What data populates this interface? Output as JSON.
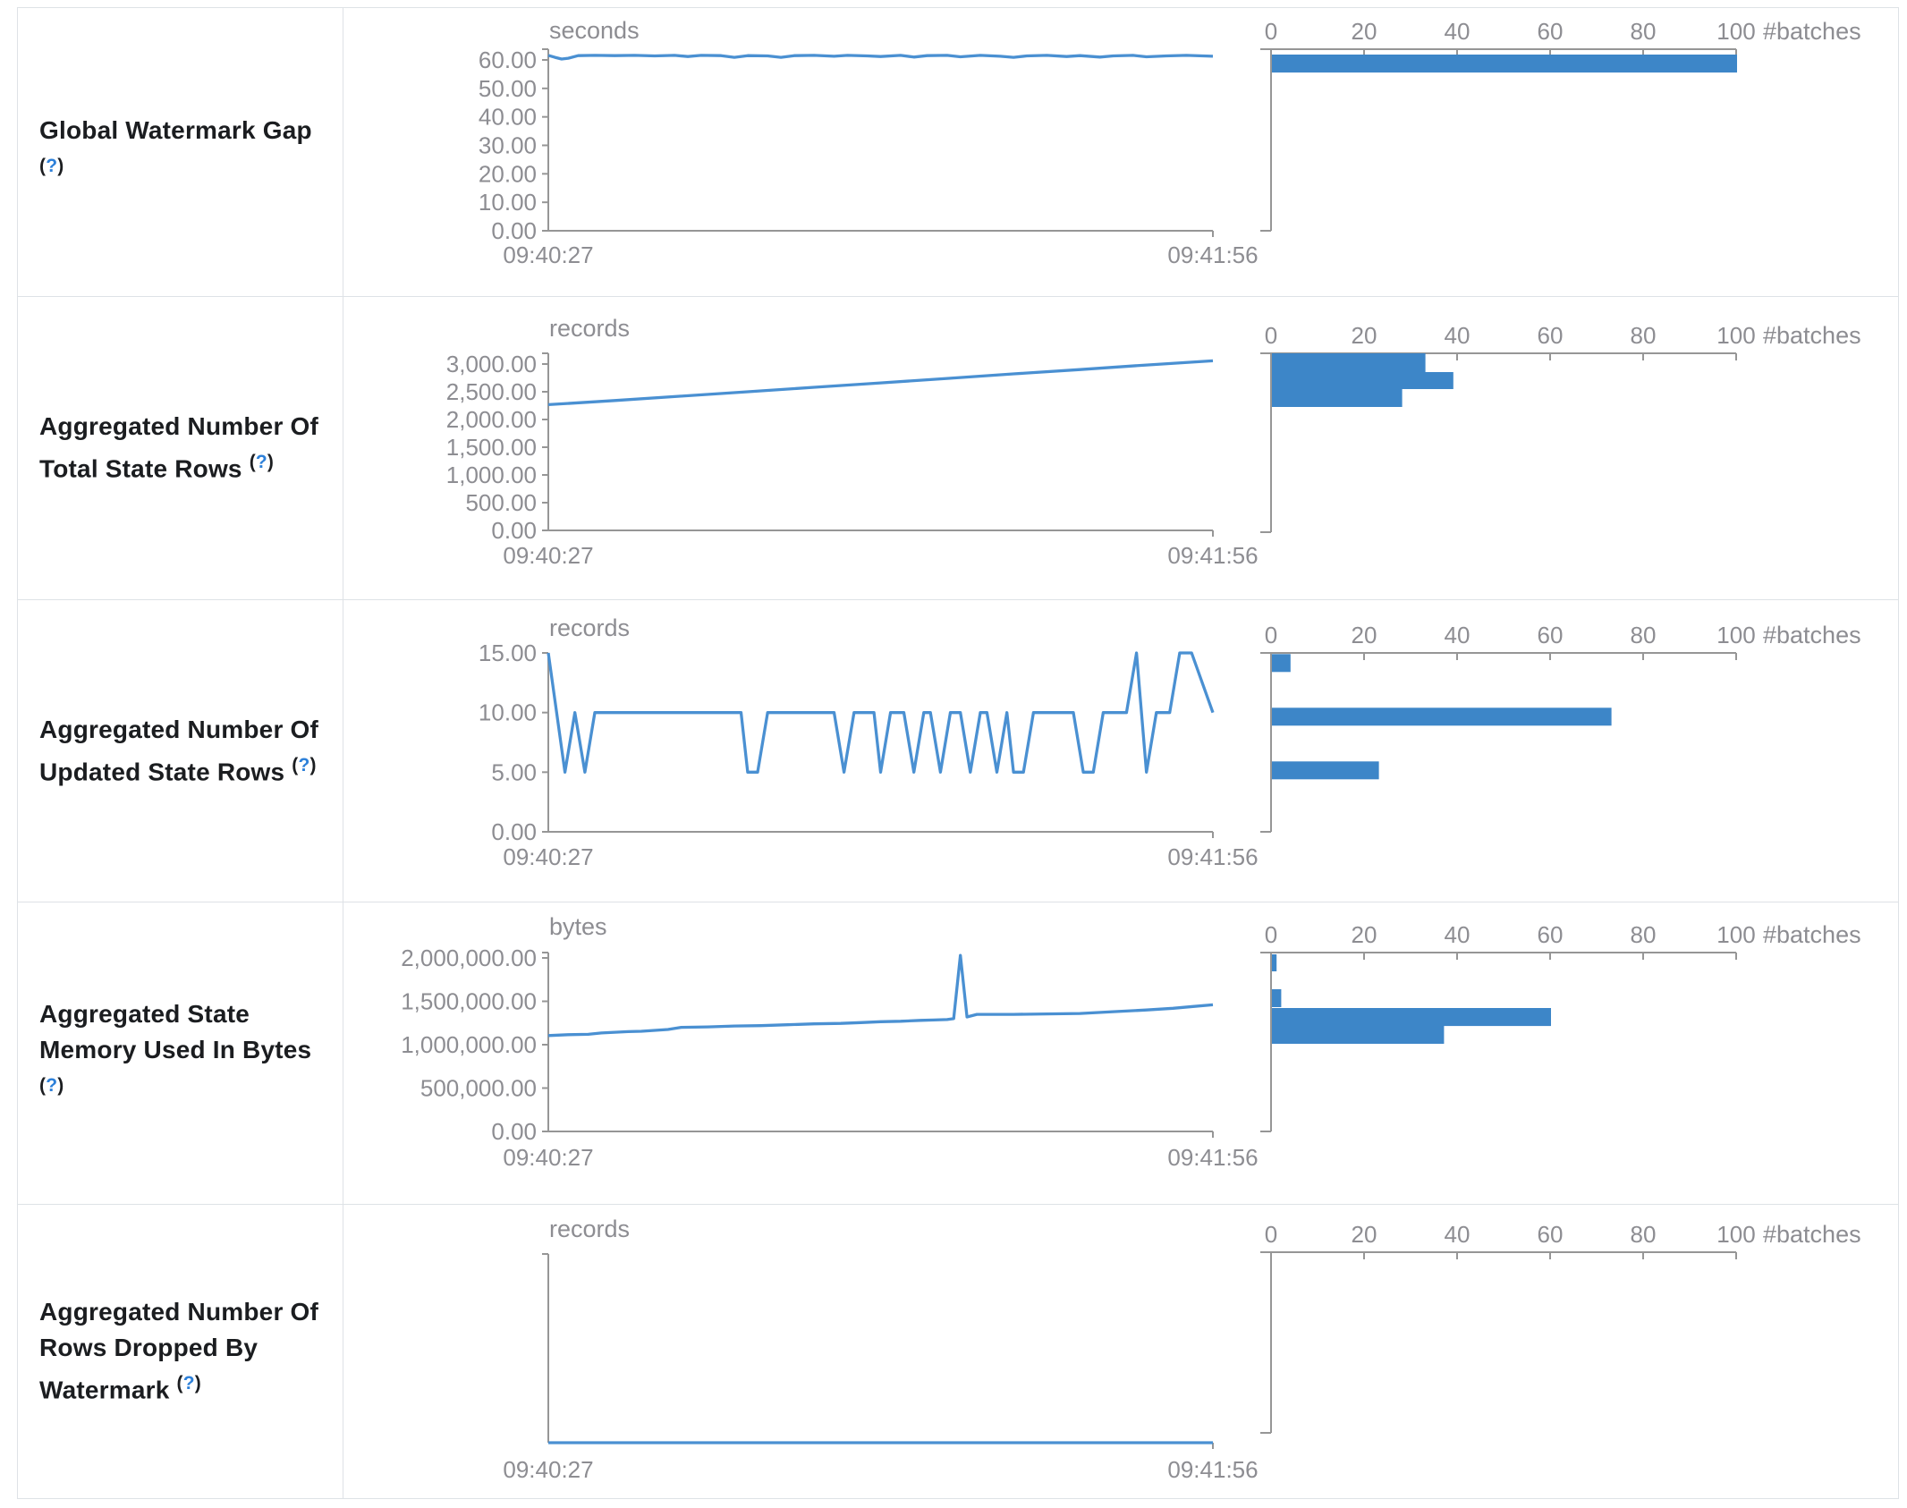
{
  "page": {
    "colors": {
      "line_blue": "#4a90d2",
      "bar_blue": "#3d86c8",
      "axis_gray": "#969696",
      "text_gray": "#8d8d92",
      "label_color": "#1b1d20",
      "help_blue": "#2d80d9",
      "border": "#dee2e6"
    }
  },
  "x_axis": {
    "start_label": "09:40:27",
    "end_label": "09:41:56"
  },
  "histogram_axis": {
    "unit": "#batches",
    "ticks": [
      0,
      20,
      40,
      60,
      80,
      100
    ],
    "xlim": [
      0,
      100
    ]
  },
  "rows": [
    {
      "label": "Global Watermark Gap",
      "help": "?"
    },
    {
      "label": "Aggregated Number Of Total State Rows",
      "help": "?"
    },
    {
      "label": "Aggregated Number Of Updated State Rows",
      "help": "?"
    },
    {
      "label": "Aggregated State Memory Used In Bytes",
      "help": "?"
    },
    {
      "label": "Aggregated Number Of Rows Dropped By Watermark",
      "help": "?"
    }
  ],
  "chart_data": [
    {
      "row": "Global Watermark Gap",
      "timeline": {
        "type": "line",
        "unit": "seconds",
        "x_range": [
          "09:40:27",
          "09:41:56"
        ],
        "ylim": [
          0,
          63.8
        ],
        "grid": false,
        "yticks": [
          {
            "v": 60,
            "t": "60.00"
          },
          {
            "v": 50,
            "t": "50.00"
          },
          {
            "v": 40,
            "t": "40.00"
          },
          {
            "v": 30,
            "t": "30.00"
          },
          {
            "v": 20,
            "t": "20.00"
          },
          {
            "v": 10,
            "t": "10.00"
          },
          {
            "v": 0,
            "t": "0.00"
          }
        ],
        "points": [
          [
            0,
            61.6
          ],
          [
            0.01,
            60.9
          ],
          [
            0.02,
            60.3
          ],
          [
            0.03,
            60.6
          ],
          [
            0.045,
            61.5
          ],
          [
            0.07,
            61.6
          ],
          [
            0.1,
            61.5
          ],
          [
            0.13,
            61.6
          ],
          [
            0.16,
            61.4
          ],
          [
            0.19,
            61.6
          ],
          [
            0.21,
            61.2
          ],
          [
            0.23,
            61.6
          ],
          [
            0.26,
            61.5
          ],
          [
            0.28,
            60.9
          ],
          [
            0.3,
            61.5
          ],
          [
            0.33,
            61.4
          ],
          [
            0.35,
            60.9
          ],
          [
            0.37,
            61.5
          ],
          [
            0.4,
            61.6
          ],
          [
            0.43,
            61.3
          ],
          [
            0.45,
            61.6
          ],
          [
            0.48,
            61.4
          ],
          [
            0.5,
            61.2
          ],
          [
            0.53,
            61.6
          ],
          [
            0.55,
            61.0
          ],
          [
            0.57,
            61.5
          ],
          [
            0.6,
            61.6
          ],
          [
            0.62,
            61.1
          ],
          [
            0.65,
            61.6
          ],
          [
            0.68,
            61.3
          ],
          [
            0.7,
            60.9
          ],
          [
            0.72,
            61.4
          ],
          [
            0.75,
            61.6
          ],
          [
            0.78,
            61.2
          ],
          [
            0.8,
            61.5
          ],
          [
            0.83,
            61.0
          ],
          [
            0.85,
            61.4
          ],
          [
            0.88,
            61.6
          ],
          [
            0.9,
            61.1
          ],
          [
            0.93,
            61.4
          ],
          [
            0.96,
            61.6
          ],
          [
            1,
            61.3
          ]
        ]
      },
      "histogram": {
        "type": "bar",
        "unit": "#batches",
        "xlim": [
          0,
          100
        ],
        "xticks": [
          0,
          20,
          40,
          60,
          80,
          100
        ],
        "buckets": [
          {
            "hi": 61.9,
            "lo": 55.6,
            "count": 100
          }
        ]
      }
    },
    {
      "row": "Aggregated Number Of Total State Rows",
      "timeline": {
        "type": "line",
        "unit": "records",
        "x_range": [
          "09:40:27",
          "09:41:56"
        ],
        "ylim": [
          0,
          3194
        ],
        "grid": false,
        "yticks": [
          {
            "v": 3000,
            "t": "3,000.00"
          },
          {
            "v": 2500,
            "t": "2,500.00"
          },
          {
            "v": 2000,
            "t": "2,000.00"
          },
          {
            "v": 1500,
            "t": "1,500.00"
          },
          {
            "v": 1000,
            "t": "1,000.00"
          },
          {
            "v": 500,
            "t": "500.00"
          },
          {
            "v": 0,
            "t": "0.00"
          }
        ],
        "points": [
          [
            0,
            2268
          ],
          [
            0.1,
            2342
          ],
          [
            0.2,
            2421
          ],
          [
            0.3,
            2500
          ],
          [
            0.4,
            2580
          ],
          [
            0.5,
            2660
          ],
          [
            0.6,
            2740
          ],
          [
            0.7,
            2822
          ],
          [
            0.8,
            2900
          ],
          [
            0.9,
            2982
          ],
          [
            1,
            3058
          ]
        ]
      },
      "histogram": {
        "type": "bar",
        "unit": "#batches",
        "xlim": [
          0,
          100
        ],
        "xticks": [
          0,
          20,
          40,
          60,
          80,
          100
        ],
        "buckets": [
          {
            "hi": 3194,
            "lo": 2855,
            "count": 33
          },
          {
            "hi": 2855,
            "lo": 2548,
            "count": 39
          },
          {
            "hi": 2548,
            "lo": 2226,
            "count": 28
          }
        ]
      }
    },
    {
      "row": "Aggregated Number Of Updated State Rows",
      "timeline": {
        "type": "line",
        "unit": "records",
        "x_range": [
          "09:40:27",
          "09:41:56"
        ],
        "ylim": [
          0,
          15
        ],
        "grid": false,
        "yticks": [
          {
            "v": 15,
            "t": "15.00"
          },
          {
            "v": 10,
            "t": "10.00"
          },
          {
            "v": 5,
            "t": "5.00"
          },
          {
            "v": 0,
            "t": "0.00"
          }
        ],
        "points": [
          [
            0,
            15
          ],
          [
            0.025,
            5
          ],
          [
            0.04,
            10
          ],
          [
            0.055,
            5
          ],
          [
            0.07,
            10
          ],
          [
            0.29,
            10
          ],
          [
            0.3,
            5
          ],
          [
            0.315,
            5
          ],
          [
            0.33,
            10
          ],
          [
            0.43,
            10
          ],
          [
            0.445,
            5
          ],
          [
            0.46,
            10
          ],
          [
            0.49,
            10
          ],
          [
            0.5,
            5
          ],
          [
            0.515,
            10
          ],
          [
            0.535,
            10
          ],
          [
            0.55,
            5
          ],
          [
            0.565,
            10
          ],
          [
            0.575,
            10
          ],
          [
            0.59,
            5
          ],
          [
            0.605,
            10
          ],
          [
            0.62,
            10
          ],
          [
            0.635,
            5
          ],
          [
            0.65,
            10
          ],
          [
            0.66,
            10
          ],
          [
            0.675,
            5
          ],
          [
            0.69,
            10
          ],
          [
            0.7,
            5
          ],
          [
            0.715,
            5
          ],
          [
            0.73,
            10
          ],
          [
            0.79,
            10
          ],
          [
            0.805,
            5
          ],
          [
            0.82,
            5
          ],
          [
            0.835,
            10
          ],
          [
            0.87,
            10
          ],
          [
            0.885,
            15
          ],
          [
            0.9,
            5
          ],
          [
            0.915,
            10
          ],
          [
            0.935,
            10
          ],
          [
            0.95,
            15
          ],
          [
            0.968,
            15
          ],
          [
            1,
            10
          ]
        ]
      },
      "histogram": {
        "type": "bar",
        "unit": "#batches",
        "xlim": [
          0,
          100
        ],
        "xticks": [
          0,
          20,
          40,
          60,
          80,
          100
        ],
        "buckets": [
          {
            "hi": 14.9,
            "lo": 13.4,
            "count": 4
          },
          {
            "hi": 10.4,
            "lo": 8.9,
            "count": 73
          },
          {
            "hi": 5.9,
            "lo": 4.4,
            "count": 23
          }
        ]
      }
    },
    {
      "row": "Aggregated State Memory Used In Bytes",
      "timeline": {
        "type": "line",
        "unit": "bytes",
        "x_range": [
          "09:40:27",
          "09:41:56"
        ],
        "ylim": [
          0,
          2062000
        ],
        "grid": false,
        "yticks": [
          {
            "v": 2000000,
            "t": "2,000,000.00"
          },
          {
            "v": 1500000,
            "t": "1,500,000.00"
          },
          {
            "v": 1000000,
            "t": "1,000,000.00"
          },
          {
            "v": 500000,
            "t": "500,000.00"
          },
          {
            "v": 0,
            "t": "0.00"
          }
        ],
        "points": [
          [
            0,
            1105000
          ],
          [
            0.03,
            1115000
          ],
          [
            0.06,
            1120000
          ],
          [
            0.08,
            1135000
          ],
          [
            0.12,
            1150000
          ],
          [
            0.14,
            1155000
          ],
          [
            0.18,
            1175000
          ],
          [
            0.2,
            1200000
          ],
          [
            0.24,
            1205000
          ],
          [
            0.28,
            1215000
          ],
          [
            0.32,
            1220000
          ],
          [
            0.36,
            1230000
          ],
          [
            0.4,
            1240000
          ],
          [
            0.44,
            1245000
          ],
          [
            0.47,
            1255000
          ],
          [
            0.5,
            1265000
          ],
          [
            0.53,
            1270000
          ],
          [
            0.56,
            1280000
          ],
          [
            0.58,
            1285000
          ],
          [
            0.6,
            1290000
          ],
          [
            0.61,
            1300000
          ],
          [
            0.62,
            2030000
          ],
          [
            0.63,
            1320000
          ],
          [
            0.645,
            1350000
          ],
          [
            0.7,
            1350000
          ],
          [
            0.75,
            1355000
          ],
          [
            0.8,
            1360000
          ],
          [
            0.85,
            1380000
          ],
          [
            0.9,
            1400000
          ],
          [
            0.94,
            1420000
          ],
          [
            0.97,
            1440000
          ],
          [
            1,
            1460000
          ]
        ]
      },
      "histogram": {
        "type": "bar",
        "unit": "#batches",
        "xlim": [
          0,
          100
        ],
        "xticks": [
          0,
          20,
          40,
          60,
          80,
          100
        ],
        "buckets": [
          {
            "hi": 2041000,
            "lo": 1845000,
            "count": 1
          },
          {
            "hi": 1639000,
            "lo": 1433000,
            "count": 2
          },
          {
            "hi": 1423000,
            "lo": 1216000,
            "count": 60
          },
          {
            "hi": 1216000,
            "lo": 1010000,
            "count": 37
          }
        ]
      }
    },
    {
      "row": "Aggregated Number Of Rows Dropped By Watermark",
      "timeline": {
        "type": "line",
        "unit": "records",
        "x_range": [
          "09:40:27",
          "09:41:56"
        ],
        "ylim": [
          0,
          1
        ],
        "grid": false,
        "yticks": [],
        "points": [
          [
            0,
            0
          ],
          [
            1,
            0
          ]
        ]
      },
      "histogram": {
        "type": "bar",
        "unit": "#batches",
        "xlim": [
          0,
          100
        ],
        "xticks": [
          0,
          20,
          40,
          60,
          80,
          100
        ],
        "buckets": []
      }
    }
  ]
}
